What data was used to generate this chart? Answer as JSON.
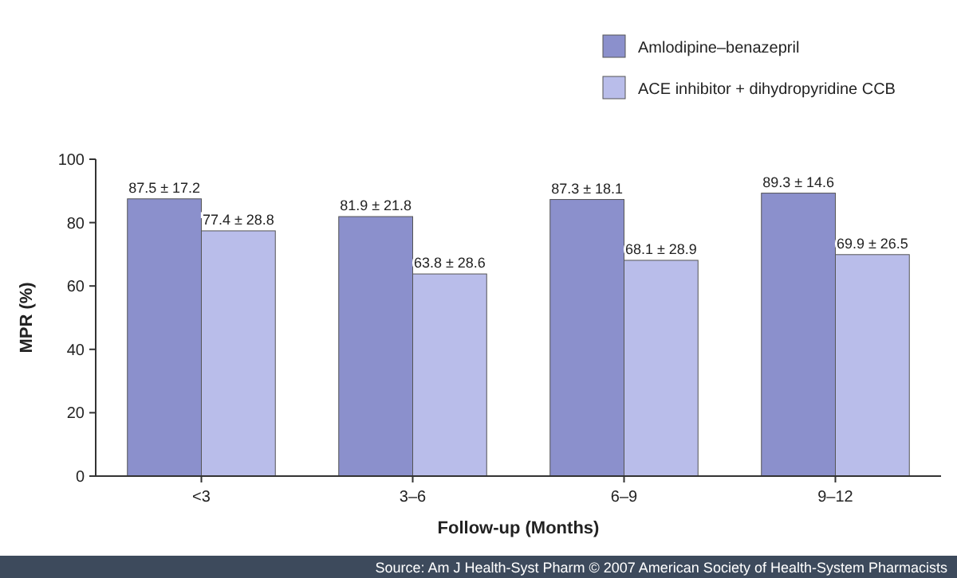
{
  "chart_data": {
    "type": "bar",
    "categories": [
      "<3",
      "3–6",
      "6–9",
      "9–12"
    ],
    "series": [
      {
        "name": "Amlodipine–benazepril",
        "color": "#8b90cc",
        "values": [
          87.5,
          81.9,
          87.3,
          89.3
        ],
        "value_labels": [
          "87.5 ± 17.2",
          "81.9 ± 21.8",
          "87.3 ± 18.1",
          "89.3 ± 14.6"
        ]
      },
      {
        "name": "ACE inhibitor + dihydropyridine CCB",
        "color": "#b9bdea",
        "values": [
          77.4,
          63.8,
          68.1,
          69.9
        ],
        "value_labels": [
          "77.4 ± 28.8",
          "63.8 ± 28.6",
          "68.1 ± 28.9",
          "69.9 ± 26.5"
        ]
      }
    ],
    "xlabel": "Follow-up (Months)",
    "ylabel": "MPR (%)",
    "ylim": [
      0,
      100
    ],
    "yticks": [
      0,
      20,
      40,
      60,
      80,
      100
    ],
    "grid": false,
    "legend": "top right",
    "annotations": [
      "Source: Am J Health-Syst Pharm © 2007 American Society of Health-System Pharmacists"
    ]
  }
}
